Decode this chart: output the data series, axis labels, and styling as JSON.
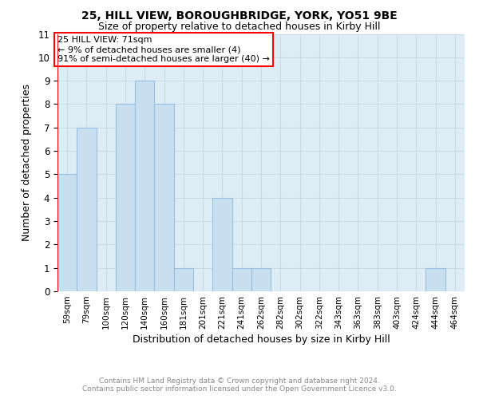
{
  "title1": "25, HILL VIEW, BOROUGHBRIDGE, YORK, YO51 9BE",
  "title2": "Size of property relative to detached houses in Kirby Hill",
  "xlabel": "Distribution of detached houses by size in Kirby Hill",
  "ylabel": "Number of detached properties",
  "footer1": "Contains HM Land Registry data © Crown copyright and database right 2024.",
  "footer2": "Contains public sector information licensed under the Open Government Licence v3.0.",
  "bin_labels": [
    "59sqm",
    "79sqm",
    "100sqm",
    "120sqm",
    "140sqm",
    "160sqm",
    "181sqm",
    "201sqm",
    "221sqm",
    "241sqm",
    "262sqm",
    "282sqm",
    "302sqm",
    "322sqm",
    "343sqm",
    "363sqm",
    "383sqm",
    "403sqm",
    "424sqm",
    "444sqm",
    "464sqm"
  ],
  "bar_values": [
    5,
    7,
    0,
    8,
    9,
    8,
    1,
    0,
    4,
    1,
    1,
    0,
    0,
    0,
    0,
    0,
    0,
    0,
    0,
    1,
    0
  ],
  "bar_color": "#c8dff0",
  "bar_edge_color": "#9bbfda",
  "red_line_x": 0.5,
  "annotation_text": "25 HILL VIEW: 71sqm\n← 9% of detached houses are smaller (4)\n91% of semi-detached houses are larger (40) →",
  "annotation_box_color": "white",
  "annotation_box_edge_color": "red",
  "ylim": [
    0,
    11
  ],
  "yticks": [
    0,
    1,
    2,
    3,
    4,
    5,
    6,
    7,
    8,
    9,
    10,
    11
  ],
  "grid_color": "#c8dce8",
  "background_color": "white",
  "plot_bg_color": "#deedf5"
}
